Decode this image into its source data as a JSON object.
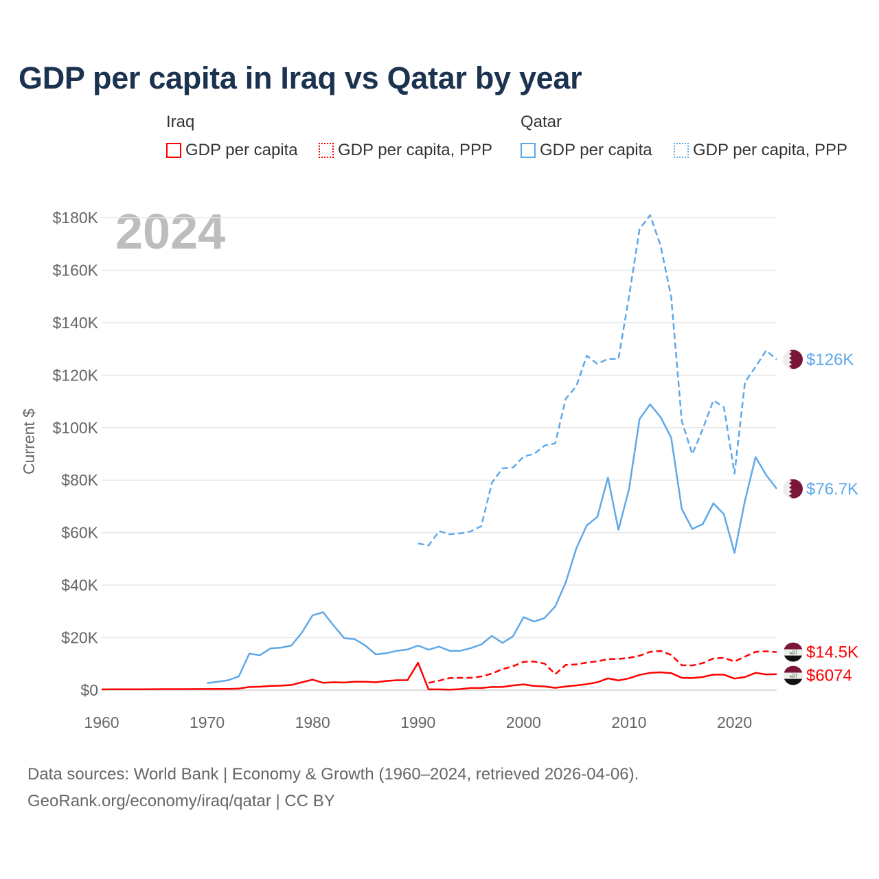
{
  "chart_data": {
    "type": "line",
    "title": "GDP per capita in Iraq vs Qatar by year",
    "ylabel": "Current $",
    "xlabel": "",
    "year_watermark": "2024",
    "xlim": [
      1960,
      2024
    ],
    "ylim": [
      0,
      180000
    ],
    "x_ticks": [
      1960,
      1970,
      1980,
      1990,
      2000,
      2010,
      2020
    ],
    "y_ticks": [
      0,
      20000,
      40000,
      60000,
      80000,
      100000,
      120000,
      140000,
      160000,
      180000
    ],
    "y_tick_labels": [
      "$0",
      "$20K",
      "$40K",
      "$60K",
      "$80K",
      "$100K",
      "$120K",
      "$140K",
      "$160K",
      "$180K"
    ],
    "grid": true,
    "legend_groups": [
      {
        "name": "Iraq",
        "items": [
          "GDP per capita",
          "GDP per capita, PPP"
        ]
      },
      {
        "name": "Qatar",
        "items": [
          "GDP per capita",
          "GDP per capita, PPP"
        ]
      }
    ],
    "series": [
      {
        "name": "Iraq GDP per capita",
        "country": "Iraq",
        "color": "#ff0000",
        "dashed": false,
        "start": 1960,
        "end_label": "$6074",
        "values": [
          300,
          310,
          320,
          330,
          340,
          360,
          380,
          390,
          400,
          410,
          420,
          450,
          480,
          600,
          1200,
          1300,
          1600,
          1700,
          2000,
          3000,
          4000,
          2800,
          3000,
          2900,
          3200,
          3200,
          3000,
          3500,
          3800,
          3800,
          10400,
          300,
          300,
          200,
          400,
          800,
          800,
          1200,
          1200,
          1800,
          2200,
          1600,
          1400,
          900,
          1400,
          1800,
          2300,
          3000,
          4500,
          3700,
          4500,
          5800,
          6600,
          6800,
          6500,
          4700,
          4600,
          5000,
          5900,
          5900,
          4400,
          5000,
          6600,
          6000,
          6074
        ]
      },
      {
        "name": "Iraq GDP per capita, PPP",
        "country": "Iraq",
        "color": "#ff0000",
        "dashed": true,
        "start": 1991,
        "end_label": "$14.5K",
        "values": [
          2800,
          3600,
          4600,
          4700,
          4700,
          5200,
          6300,
          8000,
          9100,
          10800,
          10900,
          10100,
          6100,
          9600,
          9800,
          10500,
          11000,
          11800,
          11900,
          12300,
          13100,
          14600,
          15000,
          13400,
          9500,
          9400,
          10300,
          12100,
          12300,
          10900,
          12800,
          14600,
          14800,
          14500
        ]
      },
      {
        "name": "Qatar GDP per capita",
        "country": "Qatar",
        "color": "#5fa8e8",
        "dashed": false,
        "start": 1970,
        "end_label": "$76.7K",
        "values": [
          2700,
          3200,
          3800,
          5200,
          13900,
          13300,
          15900,
          16200,
          17000,
          22000,
          28500,
          29700,
          24600,
          19800,
          19400,
          17000,
          13600,
          14100,
          15000,
          15500,
          17000,
          15400,
          16600,
          15000,
          15000,
          16000,
          17400,
          20700,
          18000,
          20500,
          27800,
          26100,
          27500,
          31900,
          41000,
          54000,
          62800,
          66000,
          81000,
          61100,
          76600,
          103300,
          108900,
          104000,
          96200,
          69100,
          61400,
          63300,
          71200,
          67000,
          52300,
          72300,
          88800,
          82000,
          76700
        ]
      },
      {
        "name": "Qatar GDP per capita, PPP",
        "country": "Qatar",
        "color": "#5fa8e8",
        "dashed": true,
        "start": 1990,
        "end_label": "$126K",
        "values": [
          55900,
          55100,
          60600,
          59400,
          59700,
          60500,
          62500,
          79000,
          84500,
          84800,
          89000,
          90000,
          93200,
          94000,
          111000,
          115800,
          127400,
          124300,
          126200,
          126200,
          150000,
          175600,
          181000,
          169300,
          149800,
          102500,
          89900,
          99600,
          110400,
          107800,
          82500,
          117400,
          123200,
          129400,
          126000
        ]
      }
    ]
  },
  "source": {
    "line1": "Data sources: World Bank | Economy & Growth (1960–2024, retrieved 2026-04-06).",
    "line2": "GeoRank.org/economy/iraq/qatar | CC BY"
  },
  "colors": {
    "iraq": "#ff0000",
    "qatar": "#5fa8e8",
    "title": "#1c3350"
  }
}
